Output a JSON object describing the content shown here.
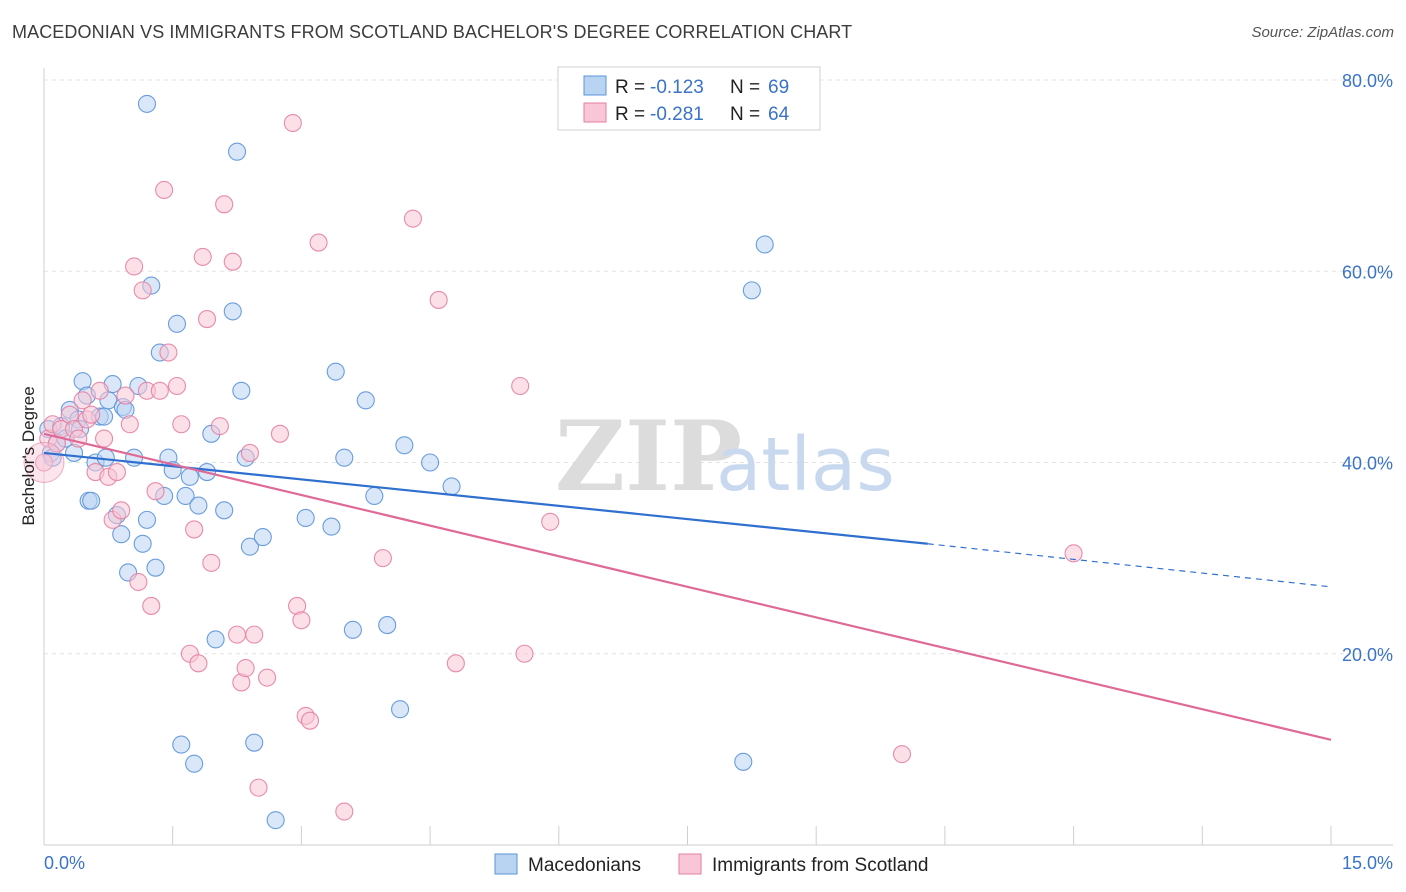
{
  "title": "MACEDONIAN VS IMMIGRANTS FROM SCOTLAND BACHELOR'S DEGREE CORRELATION CHART",
  "source": "Source: ZipAtlas.com",
  "watermark": {
    "zip": "ZIP",
    "atlas": "atlas"
  },
  "legend": {
    "r_label": "R = ",
    "n_label": "N = ",
    "rows": [
      {
        "r": "-0.123",
        "n": "69",
        "color": "#5b93d9",
        "fill": "#b9d3f3"
      },
      {
        "r": "-0.281",
        "n": "64",
        "color": "#e57fa3",
        "fill": "#f8c6d6"
      }
    ]
  },
  "bottom_legend": [
    "Macedonians",
    "Immigrants from Scotland"
  ],
  "chart_data": {
    "type": "scatter",
    "xlabel": "",
    "ylabel": "Bachelor's Degree",
    "xlim": [
      0,
      15
    ],
    "ylim": [
      0,
      80
    ],
    "x_tick_labels": [
      "0.0%",
      "15.0%"
    ],
    "y_ticks": [
      20,
      40,
      60,
      80
    ],
    "y_tick_labels": [
      "20.0%",
      "40.0%",
      "60.0%",
      "80.0%"
    ],
    "grid": true,
    "series": [
      {
        "name": "Macedonians",
        "color": "#5b93d9",
        "fill": "#b9d3f3",
        "trend": {
          "x0": 0,
          "y0": 41.0,
          "x1": 10.3,
          "y1": 31.5,
          "dash_to_x": 15,
          "dash_to_y": 27.0
        },
        "points": [
          [
            0.05,
            43.5
          ],
          [
            0.08,
            41.0
          ],
          [
            0.1,
            40.5
          ],
          [
            0.15,
            42.0
          ],
          [
            0.2,
            43.8
          ],
          [
            0.25,
            42.5
          ],
          [
            0.3,
            45.5
          ],
          [
            0.35,
            41.0
          ],
          [
            0.4,
            44.5
          ],
          [
            0.42,
            43.5
          ],
          [
            0.45,
            48.5
          ],
          [
            0.5,
            47.0
          ],
          [
            0.52,
            36.0
          ],
          [
            0.55,
            36.0
          ],
          [
            0.6,
            40.0
          ],
          [
            0.65,
            44.8
          ],
          [
            0.7,
            44.8
          ],
          [
            0.72,
            40.5
          ],
          [
            0.75,
            46.5
          ],
          [
            0.8,
            48.2
          ],
          [
            0.85,
            34.5
          ],
          [
            0.9,
            32.5
          ],
          [
            0.92,
            45.8
          ],
          [
            0.95,
            45.5
          ],
          [
            0.98,
            28.5
          ],
          [
            1.05,
            40.5
          ],
          [
            1.1,
            48.0
          ],
          [
            1.15,
            31.5
          ],
          [
            1.2,
            34.0
          ],
          [
            1.25,
            58.5
          ],
          [
            1.3,
            29.0
          ],
          [
            1.35,
            51.5
          ],
          [
            1.4,
            36.5
          ],
          [
            1.45,
            40.5
          ],
          [
            1.5,
            39.2
          ],
          [
            1.55,
            54.5
          ],
          [
            1.6,
            10.5
          ],
          [
            1.65,
            36.5
          ],
          [
            1.7,
            38.5
          ],
          [
            1.75,
            8.5
          ],
          [
            1.8,
            35.5
          ],
          [
            1.9,
            39.0
          ],
          [
            1.95,
            43.0
          ],
          [
            2.0,
            21.5
          ],
          [
            2.1,
            35.0
          ],
          [
            2.2,
            55.8
          ],
          [
            2.25,
            72.5
          ],
          [
            2.3,
            47.5
          ],
          [
            2.35,
            40.5
          ],
          [
            2.4,
            31.2
          ],
          [
            2.45,
            10.7
          ],
          [
            2.55,
            32.2
          ],
          [
            2.7,
            2.6
          ],
          [
            3.05,
            34.2
          ],
          [
            3.35,
            33.3
          ],
          [
            3.4,
            49.5
          ],
          [
            3.5,
            40.5
          ],
          [
            3.6,
            22.5
          ],
          [
            3.75,
            46.5
          ],
          [
            3.85,
            36.5
          ],
          [
            4.0,
            23.0
          ],
          [
            4.15,
            14.2
          ],
          [
            4.2,
            41.8
          ],
          [
            4.5,
            40.0
          ],
          [
            4.75,
            37.5
          ],
          [
            8.15,
            8.7
          ],
          [
            8.25,
            58.0
          ],
          [
            8.4,
            62.8
          ],
          [
            1.2,
            77.5
          ]
        ]
      },
      {
        "name": "Immigrants from Scotland",
        "color": "#e57fa3",
        "fill": "#f8c6d6",
        "trend": {
          "x0": 0,
          "y0": 43.0,
          "x1": 15,
          "y1": 11.0
        },
        "points": [
          [
            0.0,
            40.0
          ],
          [
            0.05,
            42.5
          ],
          [
            0.1,
            44.0
          ],
          [
            0.15,
            42.0
          ],
          [
            0.2,
            43.5
          ],
          [
            0.3,
            45.0
          ],
          [
            0.35,
            43.5
          ],
          [
            0.4,
            42.5
          ],
          [
            0.45,
            46.5
          ],
          [
            0.5,
            44.5
          ],
          [
            0.55,
            45.0
          ],
          [
            0.6,
            39.0
          ],
          [
            0.65,
            47.5
          ],
          [
            0.7,
            42.5
          ],
          [
            0.75,
            38.5
          ],
          [
            0.8,
            34.0
          ],
          [
            0.85,
            39.0
          ],
          [
            0.9,
            35.0
          ],
          [
            0.95,
            47.0
          ],
          [
            1.0,
            44.0
          ],
          [
            1.05,
            60.5
          ],
          [
            1.1,
            27.5
          ],
          [
            1.15,
            58.0
          ],
          [
            1.2,
            47.5
          ],
          [
            1.25,
            25.0
          ],
          [
            1.3,
            37.0
          ],
          [
            1.35,
            47.5
          ],
          [
            1.4,
            68.5
          ],
          [
            1.45,
            51.5
          ],
          [
            1.55,
            48.0
          ],
          [
            1.6,
            44.0
          ],
          [
            1.7,
            20.0
          ],
          [
            1.75,
            33.0
          ],
          [
            1.8,
            19.0
          ],
          [
            1.85,
            61.5
          ],
          [
            1.9,
            55.0
          ],
          [
            1.95,
            29.5
          ],
          [
            2.05,
            43.8
          ],
          [
            2.1,
            67.0
          ],
          [
            2.2,
            61.0
          ],
          [
            2.25,
            22.0
          ],
          [
            2.3,
            17.0
          ],
          [
            2.35,
            18.5
          ],
          [
            2.45,
            22.0
          ],
          [
            2.6,
            17.5
          ],
          [
            2.75,
            43.0
          ],
          [
            2.9,
            75.5
          ],
          [
            2.95,
            25.0
          ],
          [
            3.0,
            23.5
          ],
          [
            3.05,
            13.5
          ],
          [
            3.1,
            13.0
          ],
          [
            3.2,
            63.0
          ],
          [
            3.5,
            3.5
          ],
          [
            3.95,
            30.0
          ],
          [
            4.3,
            65.5
          ],
          [
            4.6,
            57.0
          ],
          [
            4.8,
            19.0
          ],
          [
            5.55,
            48.0
          ],
          [
            5.6,
            20.0
          ],
          [
            5.9,
            33.8
          ],
          [
            10.0,
            9.5
          ],
          [
            12.0,
            30.5
          ],
          [
            2.5,
            6.0
          ],
          [
            2.4,
            41.0
          ]
        ]
      }
    ]
  }
}
